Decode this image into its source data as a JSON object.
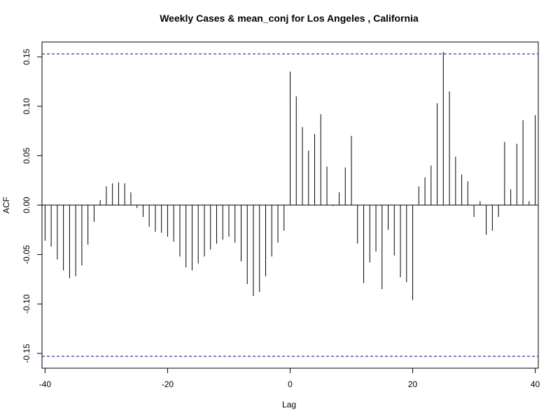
{
  "chart_data": {
    "type": "bar",
    "title": "Weekly Cases & mean_conj for Los Angeles , California",
    "xlabel": "Lag",
    "ylabel": "ACF",
    "xlim": [
      -40.5,
      40.5
    ],
    "ylim": [
      -0.165,
      0.165
    ],
    "x_ticks": [
      -40,
      -20,
      0,
      20,
      40
    ],
    "x_tick_labels": [
      "-40",
      "-20",
      "0",
      "20",
      "40"
    ],
    "y_ticks": [
      -0.15,
      -0.1,
      -0.05,
      0.0,
      0.05,
      0.1,
      0.15
    ],
    "y_tick_labels": [
      "-0.15",
      "-0.10",
      "-0.05",
      "0.00",
      "0.05",
      "0.10",
      "0.15"
    ],
    "confidence_band": 0.153,
    "colors": {
      "bars": "#000000",
      "ci_line": "#00008b",
      "zero_line": "#000000"
    },
    "lags": [
      -40,
      -39,
      -38,
      -37,
      -36,
      -35,
      -34,
      -33,
      -32,
      -31,
      -30,
      -29,
      -28,
      -27,
      -26,
      -25,
      -24,
      -23,
      -22,
      -21,
      -20,
      -19,
      -18,
      -17,
      -16,
      -15,
      -14,
      -13,
      -12,
      -11,
      -10,
      -9,
      -8,
      -7,
      -6,
      -5,
      -4,
      -3,
      -2,
      -1,
      0,
      1,
      2,
      3,
      4,
      5,
      6,
      7,
      8,
      9,
      10,
      11,
      12,
      13,
      14,
      15,
      16,
      17,
      18,
      19,
      20,
      21,
      22,
      23,
      24,
      25,
      26,
      27,
      28,
      29,
      30,
      31,
      32,
      33,
      34,
      35,
      36,
      37,
      38,
      39,
      40
    ],
    "values": [
      -0.036,
      -0.042,
      -0.055,
      -0.066,
      -0.074,
      -0.072,
      -0.061,
      -0.04,
      -0.017,
      0.005,
      0.019,
      0.022,
      0.023,
      0.022,
      0.013,
      -0.003,
      -0.012,
      -0.022,
      -0.027,
      -0.028,
      -0.032,
      -0.037,
      -0.052,
      -0.063,
      -0.066,
      -0.059,
      -0.052,
      -0.045,
      -0.039,
      -0.035,
      -0.032,
      -0.038,
      -0.057,
      -0.08,
      -0.092,
      -0.088,
      -0.072,
      -0.052,
      -0.038,
      -0.026,
      0.135,
      0.11,
      0.079,
      0.055,
      0.072,
      0.092,
      0.039,
      -0.001,
      0.013,
      0.038,
      0.07,
      -0.039,
      -0.079,
      -0.058,
      -0.047,
      -0.085,
      -0.025,
      -0.051,
      -0.073,
      -0.078,
      -0.096,
      0.019,
      0.028,
      0.04,
      0.103,
      0.155,
      0.115,
      0.049,
      0.031,
      0.024,
      -0.012,
      0.004,
      -0.03,
      -0.026,
      -0.012,
      0.064,
      0.016,
      0.062,
      0.086,
      0.004,
      0.091
    ]
  }
}
